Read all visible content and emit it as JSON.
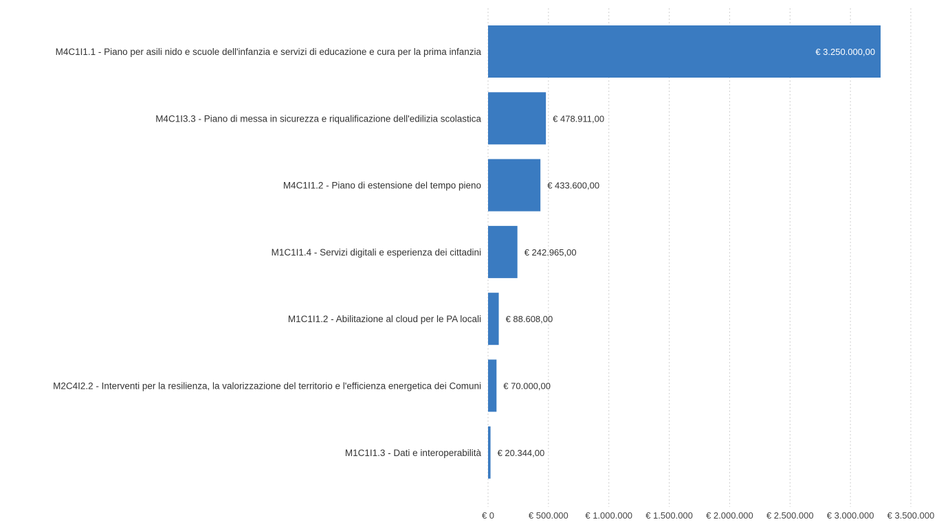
{
  "chart_data": {
    "type": "bar",
    "orientation": "horizontal",
    "categories": [
      "M4C1I1.1 - Piano per asili nido e scuole dell'infanzia e servizi di educazione e cura per la prima infanzia",
      "M4C1I3.3 - Piano di messa in sicurezza e riqualificazione dell'edilizia scolastica",
      "M4C1I1.2 - Piano di estensione del tempo pieno",
      "M1C1I1.4 - Servizi digitali e esperienza dei cittadini",
      "M1C1I1.2 - Abilitazione al cloud per le PA locali",
      "M2C4I2.2 - Interventi per la resilienza, la valorizzazione del territorio e l'efficienza energetica dei Comuni",
      "M1C1I1.3 - Dati e interoperabilità"
    ],
    "values": [
      3250000,
      478911,
      433600,
      242965,
      88608,
      70000,
      20344
    ],
    "value_labels": [
      "€ 3.250.000,00",
      "€ 478.911,00",
      "€ 433.600,00",
      "€ 242.965,00",
      "€ 88.608,00",
      "€ 70.000,00",
      "€ 20.344,00"
    ],
    "x_ticks": [
      0,
      500000,
      1000000,
      1500000,
      2000000,
      2500000,
      3000000,
      3500000
    ],
    "x_tick_labels": [
      "€ 0",
      "€ 500.000",
      "€ 1.000.000",
      "€ 1.500.000",
      "€ 2.000.000",
      "€ 2.500.000",
      "€ 3.000.000",
      "€ 3.500.000"
    ],
    "xlim": [
      0,
      3500000
    ],
    "title": "",
    "xlabel": "",
    "ylabel": "",
    "grid": "vertical dotted",
    "legend": "none",
    "colors": {
      "bar": "#3a7bc1",
      "grid": "#cfcfcf",
      "text": "#333333",
      "inside_label": "#ffffff"
    }
  }
}
